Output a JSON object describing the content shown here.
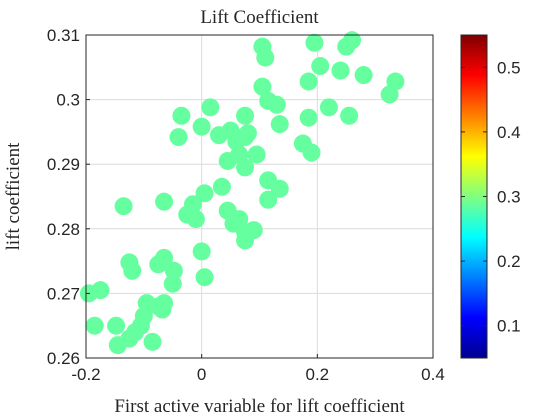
{
  "chart_data": {
    "type": "scatter",
    "title": "Lift Coefficient",
    "xlabel": "First active variable for lift coefficient",
    "ylabel": "lift coefficient",
    "xlim": [
      -0.2,
      0.4
    ],
    "ylim": [
      0.26,
      0.31
    ],
    "xticks": [
      -0.2,
      0,
      0.2,
      0.4
    ],
    "xtick_labels": [
      "-0.2",
      "0",
      "0.2",
      "0.4"
    ],
    "yticks": [
      0.26,
      0.27,
      0.28,
      0.29,
      0.3,
      0.31
    ],
    "ytick_labels": [
      "0.26",
      "0.27",
      "0.28",
      "0.29",
      "0.3",
      "0.31"
    ],
    "grid": true,
    "colorbar": {
      "colormap": "jet",
      "range": [
        0.05,
        0.55
      ],
      "ticks": [
        0.1,
        0.2,
        0.3,
        0.4,
        0.5
      ],
      "tick_labels": [
        "0.1",
        "0.2",
        "0.3",
        "0.4",
        "0.5"
      ]
    },
    "points": [
      {
        "x": -0.195,
        "y": 0.27
      },
      {
        "x": -0.175,
        "y": 0.2705
      },
      {
        "x": -0.185,
        "y": 0.265
      },
      {
        "x": -0.148,
        "y": 0.265
      },
      {
        "x": -0.145,
        "y": 0.262
      },
      {
        "x": -0.125,
        "y": 0.263
      },
      {
        "x": -0.115,
        "y": 0.264
      },
      {
        "x": -0.105,
        "y": 0.265
      },
      {
        "x": -0.1,
        "y": 0.2665
      },
      {
        "x": -0.095,
        "y": 0.2685
      },
      {
        "x": -0.085,
        "y": 0.2625
      },
      {
        "x": -0.075,
        "y": 0.268
      },
      {
        "x": -0.068,
        "y": 0.2675
      },
      {
        "x": -0.065,
        "y": 0.2685
      },
      {
        "x": -0.05,
        "y": 0.2715
      },
      {
        "x": -0.048,
        "y": 0.2735
      },
      {
        "x": -0.065,
        "y": 0.2755
      },
      {
        "x": -0.075,
        "y": 0.2745
      },
      {
        "x": -0.12,
        "y": 0.2735
      },
      {
        "x": -0.125,
        "y": 0.2748
      },
      {
        "x": -0.135,
        "y": 0.2835
      },
      {
        "x": -0.065,
        "y": 0.2842
      },
      {
        "x": -0.025,
        "y": 0.2822
      },
      {
        "x": -0.015,
        "y": 0.2838
      },
      {
        "x": -0.01,
        "y": 0.2815
      },
      {
        "x": 0.005,
        "y": 0.2725
      },
      {
        "x": 0.0,
        "y": 0.2765
      },
      {
        "x": 0.005,
        "y": 0.2855
      },
      {
        "x": 0.035,
        "y": 0.2865
      },
      {
        "x": 0.045,
        "y": 0.2828
      },
      {
        "x": 0.055,
        "y": 0.2808
      },
      {
        "x": 0.065,
        "y": 0.2815
      },
      {
        "x": 0.075,
        "y": 0.2795
      },
      {
        "x": 0.075,
        "y": 0.2782
      },
      {
        "x": 0.09,
        "y": 0.2798
      },
      {
        "x": 0.045,
        "y": 0.2905
      },
      {
        "x": 0.065,
        "y": 0.2915
      },
      {
        "x": 0.075,
        "y": 0.2895
      },
      {
        "x": 0.095,
        "y": 0.2915
      },
      {
        "x": 0.115,
        "y": 0.2875
      },
      {
        "x": 0.115,
        "y": 0.2845
      },
      {
        "x": 0.135,
        "y": 0.2862
      },
      {
        "x": -0.035,
        "y": 0.2975
      },
      {
        "x": -0.04,
        "y": 0.2942
      },
      {
        "x": 0.0,
        "y": 0.2958
      },
      {
        "x": 0.015,
        "y": 0.2988
      },
      {
        "x": 0.03,
        "y": 0.2945
      },
      {
        "x": 0.05,
        "y": 0.2952
      },
      {
        "x": 0.06,
        "y": 0.2935
      },
      {
        "x": 0.075,
        "y": 0.2942
      },
      {
        "x": 0.08,
        "y": 0.2948
      },
      {
        "x": 0.075,
        "y": 0.2975
      },
      {
        "x": 0.105,
        "y": 0.302
      },
      {
        "x": 0.11,
        "y": 0.3065
      },
      {
        "x": 0.105,
        "y": 0.3082
      },
      {
        "x": 0.115,
        "y": 0.2998
      },
      {
        "x": 0.13,
        "y": 0.2992
      },
      {
        "x": 0.135,
        "y": 0.2962
      },
      {
        "x": 0.175,
        "y": 0.2932
      },
      {
        "x": 0.185,
        "y": 0.2972
      },
      {
        "x": 0.19,
        "y": 0.2918
      },
      {
        "x": 0.185,
        "y": 0.3028
      },
      {
        "x": 0.205,
        "y": 0.3052
      },
      {
        "x": 0.195,
        "y": 0.3088
      },
      {
        "x": 0.22,
        "y": 0.2988
      },
      {
        "x": 0.24,
        "y": 0.3045
      },
      {
        "x": 0.25,
        "y": 0.3082
      },
      {
        "x": 0.26,
        "y": 0.3092
      },
      {
        "x": 0.255,
        "y": 0.2975
      },
      {
        "x": 0.28,
        "y": 0.3038
      },
      {
        "x": 0.325,
        "y": 0.3008
      },
      {
        "x": 0.335,
        "y": 0.3028
      }
    ]
  }
}
